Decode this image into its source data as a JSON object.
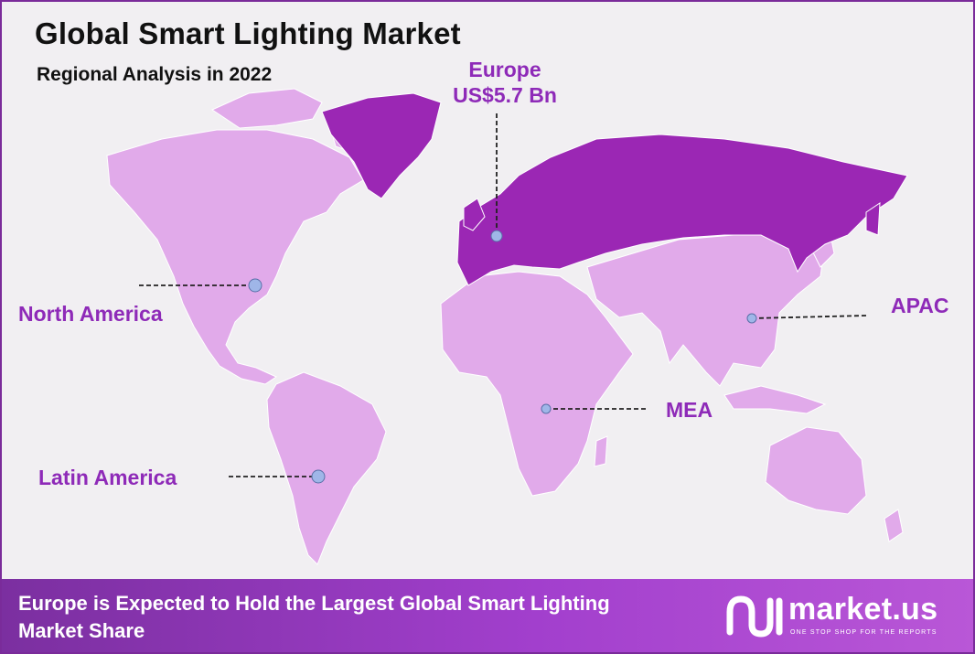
{
  "title": "Global Smart Lighting Market",
  "subtitle": "Regional Analysis in 2022",
  "regions": {
    "europe": {
      "name": "Europe",
      "value": "US$5.7 Bn"
    },
    "north_america": {
      "name": "North America"
    },
    "latin_america": {
      "name": "Latin America"
    },
    "mea": {
      "name": "MEA"
    },
    "apac": {
      "name": "APAC"
    }
  },
  "footer": {
    "text": "Europe is Expected to Hold the Largest Global Smart Lighting Market Share"
  },
  "brand": {
    "name": "market.us",
    "tagline": "ONE STOP SHOP FOR THE REPORTS"
  },
  "colors": {
    "highlight_region": "#9b27b4",
    "other_regions": "#e1aaea",
    "label_text": "#8e2ab8",
    "footer_gradient_start": "#7b2fa0",
    "footer_gradient_end": "#b957d7",
    "marker": "#9fb6e8"
  },
  "icons": [
    "market-us-logo-icon",
    "region-marker-icon"
  ]
}
